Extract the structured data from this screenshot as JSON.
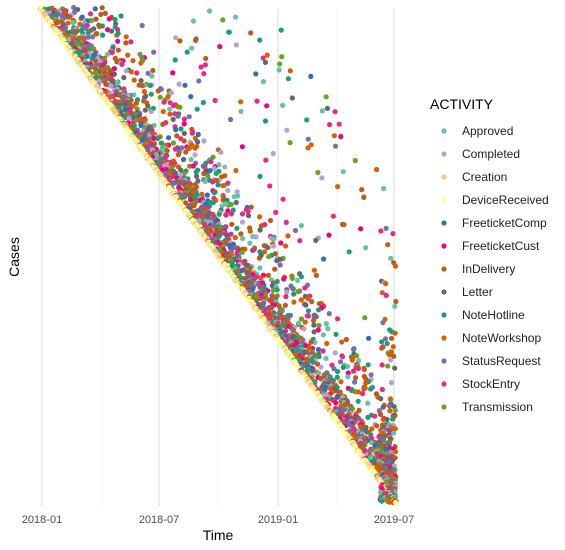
{
  "chart_data": {
    "type": "scatter",
    "title": "",
    "xlabel": "Time",
    "ylabel": "Cases",
    "x_ticks": [
      "2018-01",
      "2018-07",
      "2019-01",
      "2019-07"
    ],
    "xlim": [
      "2018-01-01",
      "2019-07-01"
    ],
    "y_ticks": [],
    "grid": true,
    "legend": {
      "title": "ACTIVITY",
      "placement": "right",
      "entries": [
        {
          "name": "Approved",
          "color": "#66c2a5"
        },
        {
          "name": "Completed",
          "color": "#b3a3d1"
        },
        {
          "name": "Creation",
          "color": "#fdc086"
        },
        {
          "name": "DeviceReceived",
          "color": "#ffff99"
        },
        {
          "name": "FreeticketComp",
          "color": "#386cb0"
        },
        {
          "name": "FreeticketCust",
          "color": "#f0027f"
        },
        {
          "name": "InDelivery",
          "color": "#bf5b17"
        },
        {
          "name": "Letter",
          "color": "#666666"
        },
        {
          "name": "NoteHotline",
          "color": "#1b9e77"
        },
        {
          "name": "NoteWorkshop",
          "color": "#d95f02"
        },
        {
          "name": "StatusRequest",
          "color": "#7570b3"
        },
        {
          "name": "StockEntry",
          "color": "#e7298a"
        },
        {
          "name": "Transmission",
          "color": "#66a61e"
        }
      ]
    },
    "description_of_density": "Each case starts at Creation on the diagonal (early cases top-left, late cases bottom-right); later activities scatter to the right of the diagonal."
  }
}
